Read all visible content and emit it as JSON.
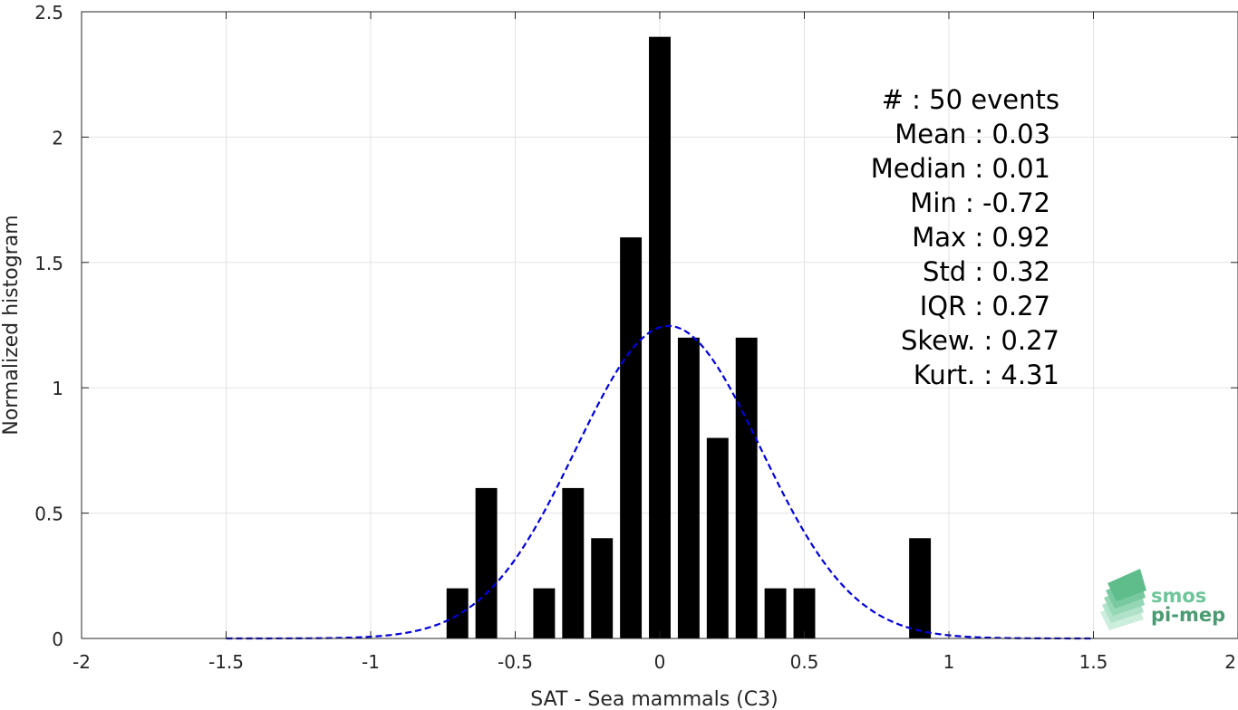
{
  "chart_data": {
    "type": "bar",
    "xlabel": "SAT - Sea mammals (C3)",
    "ylabel": "Normalized histogram",
    "xlim": [
      -2,
      2
    ],
    "ylim": [
      0,
      2.5
    ],
    "grid": true,
    "x_ticks": [
      "-2",
      "-1.5",
      "-1",
      "-0.5",
      "0",
      "0.5",
      "1",
      "1.5",
      "2"
    ],
    "y_ticks": [
      "0",
      "0.5",
      "1",
      "1.5",
      "2",
      "2.5"
    ],
    "bar_width": 0.075,
    "bar_color": "#000000",
    "bins": [
      {
        "x": -0.7,
        "value": 0.2
      },
      {
        "x": -0.6,
        "value": 0.6
      },
      {
        "x": -0.4,
        "value": 0.2
      },
      {
        "x": -0.3,
        "value": 0.6
      },
      {
        "x": -0.2,
        "value": 0.4
      },
      {
        "x": -0.1,
        "value": 1.6
      },
      {
        "x": 0.0,
        "value": 2.4
      },
      {
        "x": 0.1,
        "value": 1.2
      },
      {
        "x": 0.2,
        "value": 0.8
      },
      {
        "x": 0.3,
        "value": 1.2
      },
      {
        "x": 0.4,
        "value": 0.2
      },
      {
        "x": 0.5,
        "value": 0.2
      },
      {
        "x": 0.9,
        "value": 0.4
      }
    ],
    "fit": {
      "type": "normal",
      "mean": 0.03,
      "std": 0.32,
      "x_range": [
        -1.5,
        1.5
      ],
      "line_style": "dashed",
      "color": "#0000dd"
    },
    "stats": [
      "#  : 50 events",
      "Mean : 0.03",
      "Median : 0.01",
      "Min : -0.72",
      "Max : 0.92",
      "Std : 0.32",
      "IQR : 0.27",
      "Skew. : 0.27",
      "Kurt. : 4.31"
    ]
  },
  "logo": {
    "line1": "smos",
    "line2": "pi-mep",
    "color1": "#6dc59a",
    "color2": "#4a9a72"
  }
}
